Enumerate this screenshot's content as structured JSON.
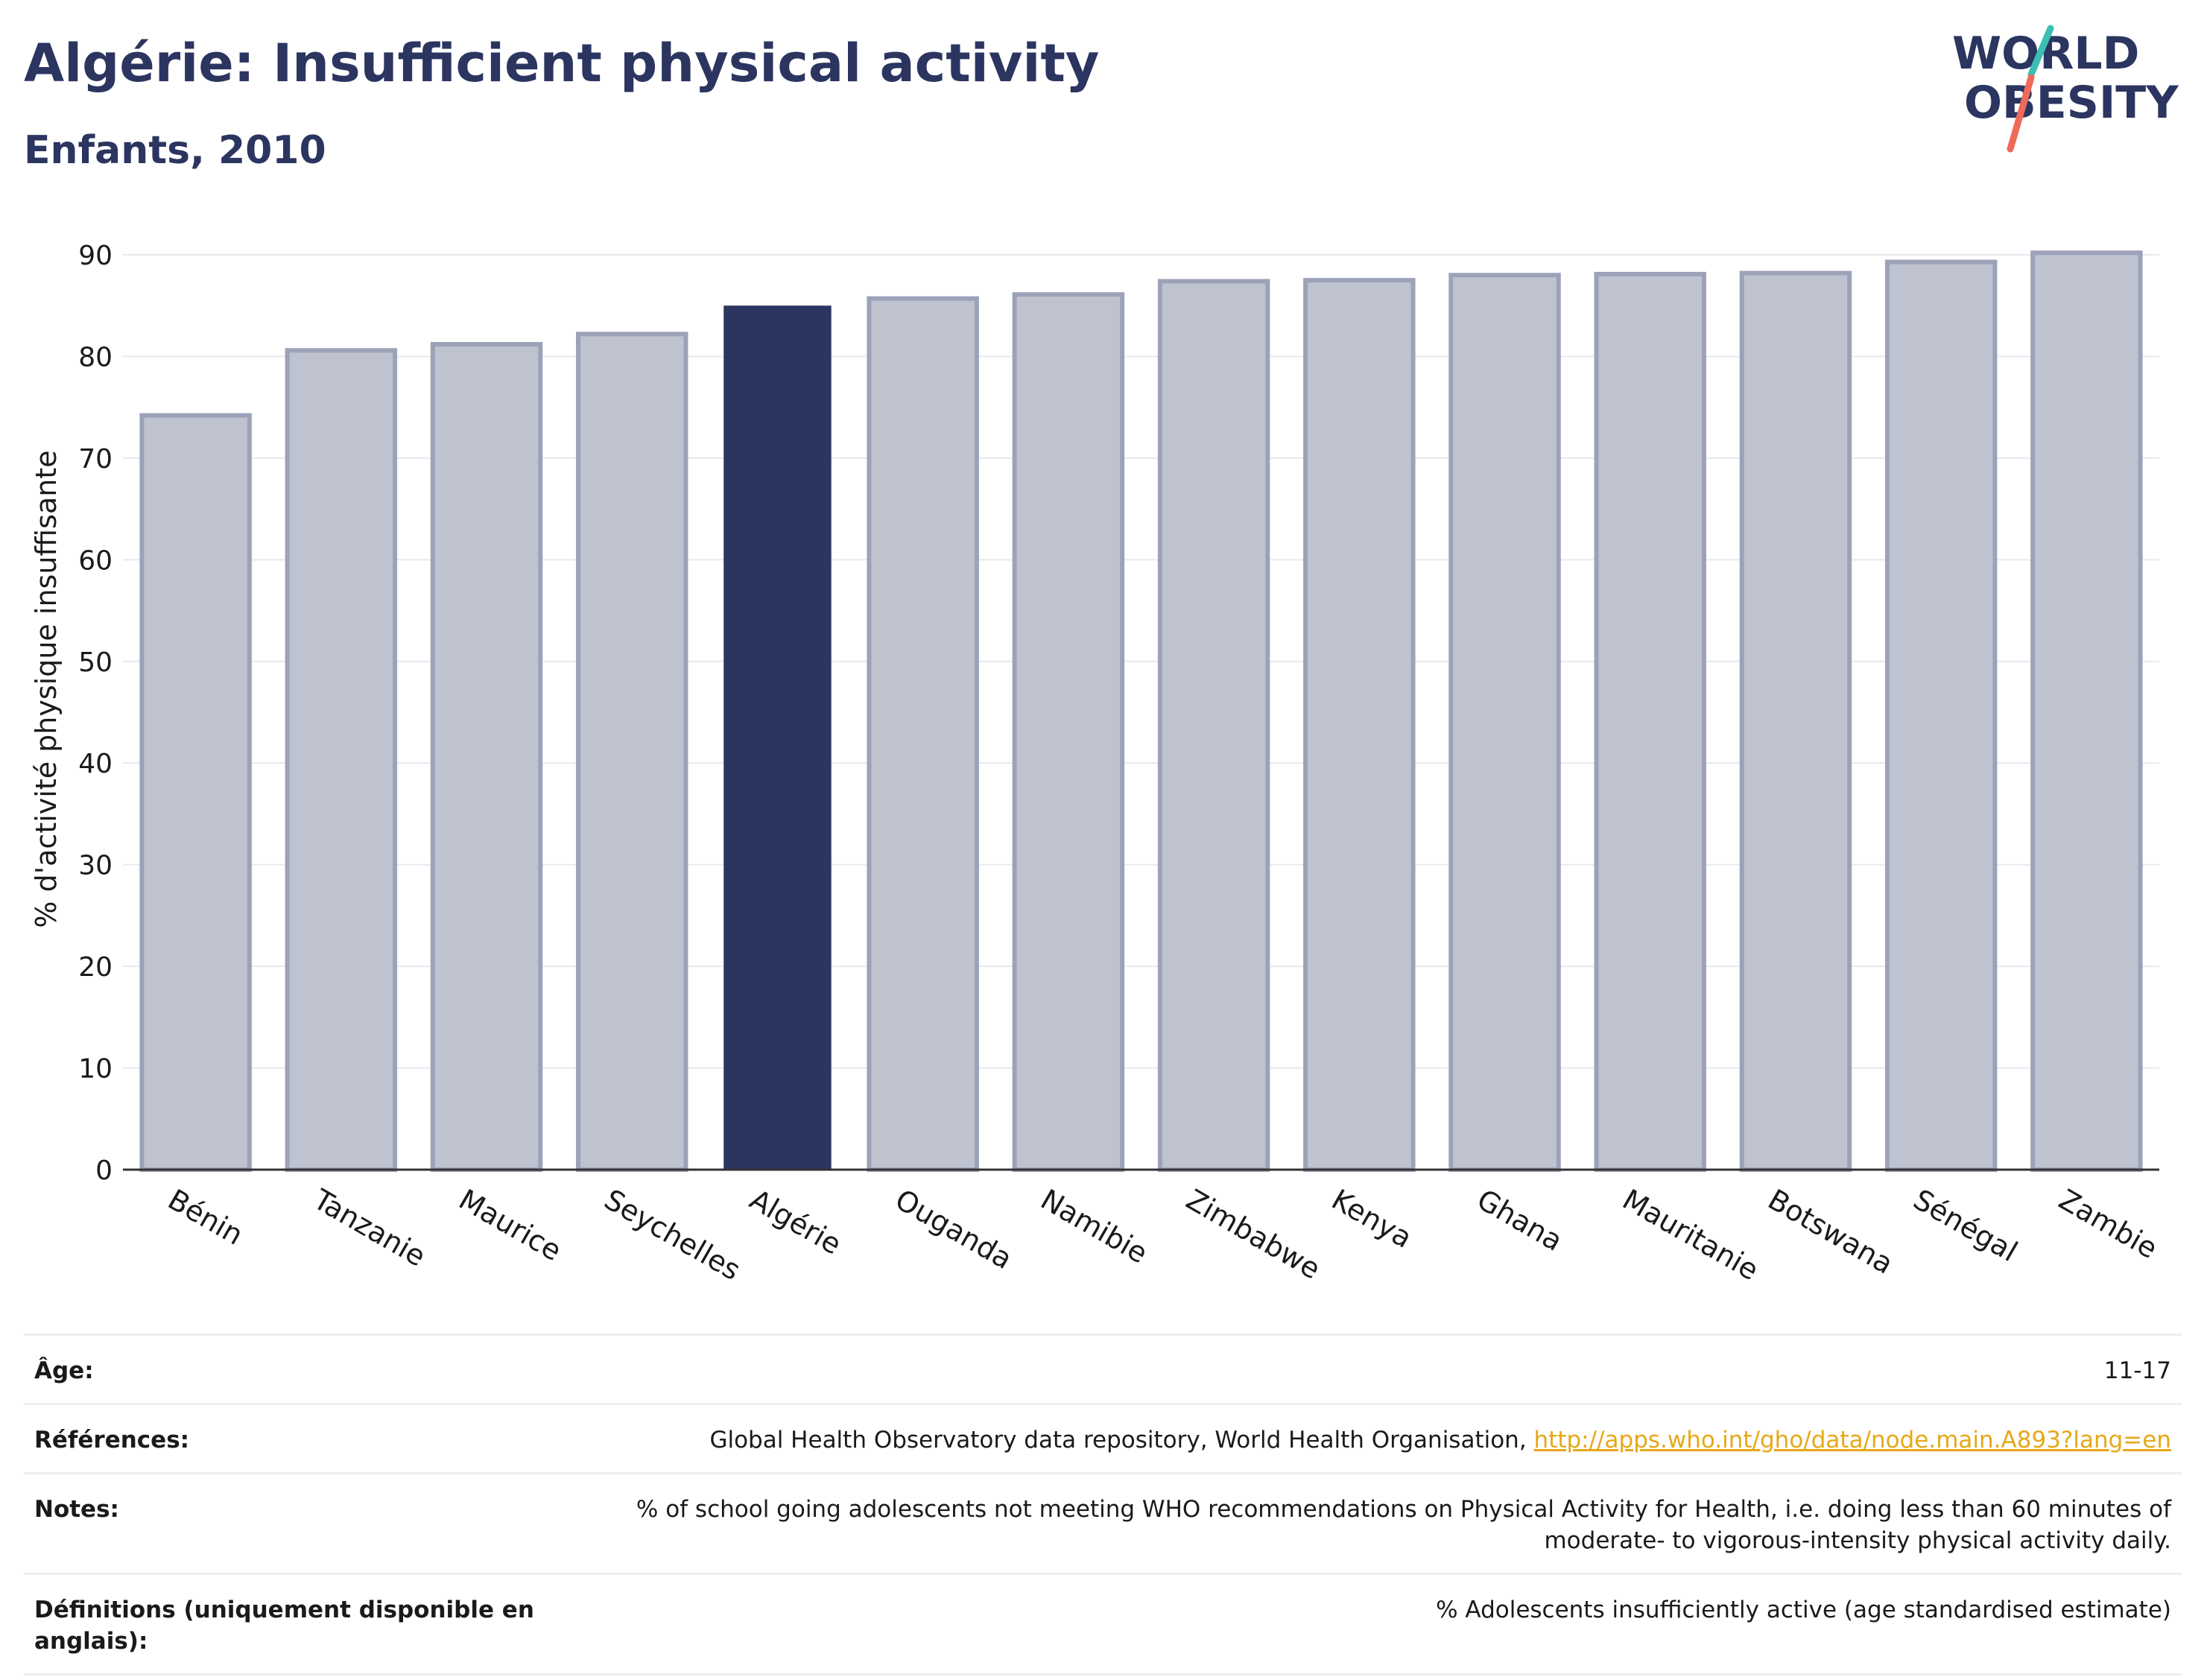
{
  "header": {
    "title": "Algérie: Insufficient physical activity",
    "subtitle": "Enfants, 2010"
  },
  "logo": {
    "line1": "WORLD",
    "line2": "OBESITY",
    "accent_color": "#3bbfb4",
    "slash_color": "#ee6b5a",
    "text_color": "#2b3560"
  },
  "chart_data": {
    "type": "bar",
    "ylabel": "% d'activité physique insuffisante",
    "ylim": [
      0,
      90
    ],
    "yticks": [
      0,
      10,
      20,
      30,
      40,
      50,
      60,
      70,
      80,
      90
    ],
    "grid": true,
    "categories": [
      "Bénin",
      "Tanzanie",
      "Maurice",
      "Seychelles",
      "Algérie",
      "Ouganda",
      "Namibie",
      "Zimbabwe",
      "Kenya",
      "Ghana",
      "Mauritanie",
      "Botswana",
      "Sénégal",
      "Zambie"
    ],
    "values": [
      74.2,
      80.6,
      81.2,
      82.2,
      85.0,
      85.7,
      86.1,
      87.4,
      87.5,
      88.0,
      88.1,
      88.2,
      89.3,
      90.2
    ],
    "highlight": "Algérie",
    "colors": {
      "highlight": "#2b3560",
      "other_fill": "#bfc3cf",
      "other_stroke": "#9ca2b8"
    }
  },
  "meta": [
    {
      "label": "Âge:",
      "value": "11-17"
    },
    {
      "label": "Références:",
      "value": "Global Health Observatory data repository, World Health Organisation, ",
      "link": "http://apps.who.int/gho/data/node.main.A893?lang=en"
    },
    {
      "label": "Notes:",
      "value": "% of school going adolescents not meeting WHO recommendations on Physical Activity for Health, i.e. doing less than 60 minutes of moderate- to vigorous-intensity physical activity daily."
    },
    {
      "label": "Définitions (uniquement disponible en anglais):",
      "value": "% Adolescents insufficiently active (age standardised estimate)"
    }
  ]
}
